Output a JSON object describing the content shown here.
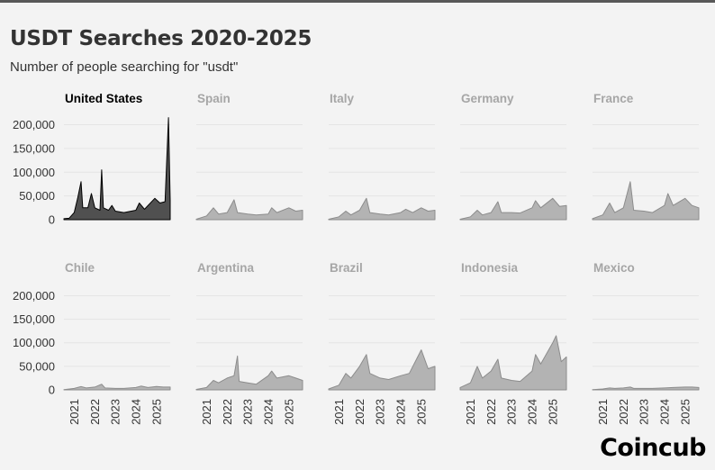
{
  "header": {
    "title": "USDT Searches 2020-2025",
    "subtitle": "Number of people searching for \"usdt\""
  },
  "logo_text": "Coincub",
  "colors": {
    "highlight_fill": "#505050",
    "highlight_line": "#000000",
    "muted_fill": "#b3b3b3",
    "muted_line": "#8c8c8c",
    "highlight_title": "#000000",
    "muted_title": "#a6a6a6",
    "grid": "#e4e4e4",
    "background": "#f3f3f3"
  },
  "chart_data": {
    "type": "area",
    "layout": "small multiples, 2 rows x 5 columns, shared axes",
    "x_ticks": [
      "2021",
      "2022",
      "2023",
      "2024",
      "2025"
    ],
    "y_ticks": [
      "0",
      "50,000",
      "100,000",
      "150,000",
      "200,000"
    ],
    "ylim": [
      0,
      220000
    ],
    "xlim": [
      "2020-07",
      "2025-09"
    ],
    "grid": true,
    "series": [
      {
        "name": "United States",
        "highlight": true,
        "points": [
          [
            "2020-07",
            2000
          ],
          [
            "2020-10",
            3000
          ],
          [
            "2021-01",
            15000
          ],
          [
            "2021-03",
            45000
          ],
          [
            "2021-05",
            80000
          ],
          [
            "2021-06",
            25000
          ],
          [
            "2021-09",
            25000
          ],
          [
            "2021-11",
            55000
          ],
          [
            "2022-01",
            25000
          ],
          [
            "2022-04",
            20000
          ],
          [
            "2022-05",
            105000
          ],
          [
            "2022-06",
            25000
          ],
          [
            "2022-09",
            20000
          ],
          [
            "2022-11",
            30000
          ],
          [
            "2023-01",
            18000
          ],
          [
            "2023-06",
            15000
          ],
          [
            "2024-01",
            20000
          ],
          [
            "2024-03",
            35000
          ],
          [
            "2024-06",
            22000
          ],
          [
            "2024-12",
            45000
          ],
          [
            "2025-03",
            35000
          ],
          [
            "2025-06",
            38000
          ],
          [
            "2025-08",
            215000
          ],
          [
            "2025-09",
            40000
          ]
        ]
      },
      {
        "name": "Spain",
        "highlight": false,
        "points": [
          [
            "2020-07",
            1000
          ],
          [
            "2021-01",
            8000
          ],
          [
            "2021-05",
            25000
          ],
          [
            "2021-08",
            12000
          ],
          [
            "2022-01",
            15000
          ],
          [
            "2022-05",
            42000
          ],
          [
            "2022-07",
            15000
          ],
          [
            "2023-01",
            12000
          ],
          [
            "2023-06",
            10000
          ],
          [
            "2024-01",
            12000
          ],
          [
            "2024-03",
            25000
          ],
          [
            "2024-06",
            15000
          ],
          [
            "2025-01",
            25000
          ],
          [
            "2025-05",
            18000
          ],
          [
            "2025-09",
            20000
          ]
        ]
      },
      {
        "name": "Italy",
        "highlight": false,
        "points": [
          [
            "2020-07",
            1000
          ],
          [
            "2021-01",
            6000
          ],
          [
            "2021-05",
            18000
          ],
          [
            "2021-08",
            10000
          ],
          [
            "2022-01",
            20000
          ],
          [
            "2022-05",
            45000
          ],
          [
            "2022-07",
            15000
          ],
          [
            "2023-01",
            12000
          ],
          [
            "2023-06",
            10000
          ],
          [
            "2024-01",
            15000
          ],
          [
            "2024-04",
            22000
          ],
          [
            "2024-08",
            15000
          ],
          [
            "2025-01",
            25000
          ],
          [
            "2025-05",
            18000
          ],
          [
            "2025-09",
            20000
          ]
        ]
      },
      {
        "name": "Germany",
        "highlight": false,
        "points": [
          [
            "2020-07",
            1000
          ],
          [
            "2021-01",
            6000
          ],
          [
            "2021-05",
            20000
          ],
          [
            "2021-08",
            10000
          ],
          [
            "2022-01",
            15000
          ],
          [
            "2022-05",
            38000
          ],
          [
            "2022-07",
            15000
          ],
          [
            "2023-01",
            15000
          ],
          [
            "2023-06",
            14000
          ],
          [
            "2024-01",
            25000
          ],
          [
            "2024-03",
            40000
          ],
          [
            "2024-06",
            25000
          ],
          [
            "2025-01",
            45000
          ],
          [
            "2025-05",
            28000
          ],
          [
            "2025-09",
            30000
          ]
        ]
      },
      {
        "name": "France",
        "highlight": false,
        "points": [
          [
            "2020-07",
            2000
          ],
          [
            "2021-01",
            10000
          ],
          [
            "2021-05",
            35000
          ],
          [
            "2021-08",
            15000
          ],
          [
            "2022-01",
            25000
          ],
          [
            "2022-05",
            80000
          ],
          [
            "2022-07",
            20000
          ],
          [
            "2023-01",
            18000
          ],
          [
            "2023-06",
            15000
          ],
          [
            "2024-01",
            30000
          ],
          [
            "2024-03",
            55000
          ],
          [
            "2024-06",
            30000
          ],
          [
            "2025-01",
            45000
          ],
          [
            "2025-05",
            30000
          ],
          [
            "2025-09",
            25000
          ]
        ]
      },
      {
        "name": "Chile",
        "highlight": false,
        "points": [
          [
            "2020-07",
            500
          ],
          [
            "2021-01",
            3000
          ],
          [
            "2021-05",
            7000
          ],
          [
            "2021-08",
            4000
          ],
          [
            "2022-01",
            6000
          ],
          [
            "2022-05",
            12000
          ],
          [
            "2022-07",
            4000
          ],
          [
            "2023-01",
            3000
          ],
          [
            "2023-06",
            3000
          ],
          [
            "2024-01",
            5000
          ],
          [
            "2024-04",
            8000
          ],
          [
            "2024-08",
            5000
          ],
          [
            "2025-01",
            7000
          ],
          [
            "2025-05",
            6000
          ],
          [
            "2025-09",
            6000
          ]
        ]
      },
      {
        "name": "Argentina",
        "highlight": false,
        "points": [
          [
            "2020-07",
            1000
          ],
          [
            "2021-01",
            5000
          ],
          [
            "2021-05",
            20000
          ],
          [
            "2021-08",
            15000
          ],
          [
            "2022-01",
            25000
          ],
          [
            "2022-05",
            30000
          ],
          [
            "2022-07",
            72000
          ],
          [
            "2022-08",
            18000
          ],
          [
            "2023-01",
            15000
          ],
          [
            "2023-06",
            12000
          ],
          [
            "2024-01",
            30000
          ],
          [
            "2024-03",
            40000
          ],
          [
            "2024-06",
            25000
          ],
          [
            "2025-01",
            30000
          ],
          [
            "2025-05",
            25000
          ],
          [
            "2025-09",
            20000
          ]
        ]
      },
      {
        "name": "Brazil",
        "highlight": false,
        "points": [
          [
            "2020-07",
            2000
          ],
          [
            "2021-01",
            10000
          ],
          [
            "2021-05",
            35000
          ],
          [
            "2021-08",
            25000
          ],
          [
            "2022-01",
            50000
          ],
          [
            "2022-05",
            75000
          ],
          [
            "2022-07",
            35000
          ],
          [
            "2023-01",
            25000
          ],
          [
            "2023-06",
            22000
          ],
          [
            "2024-01",
            30000
          ],
          [
            "2024-06",
            35000
          ],
          [
            "2025-01",
            85000
          ],
          [
            "2025-05",
            45000
          ],
          [
            "2025-09",
            50000
          ]
        ]
      },
      {
        "name": "Indonesia",
        "highlight": false,
        "points": [
          [
            "2020-07",
            5000
          ],
          [
            "2021-01",
            15000
          ],
          [
            "2021-05",
            50000
          ],
          [
            "2021-08",
            25000
          ],
          [
            "2022-01",
            40000
          ],
          [
            "2022-05",
            65000
          ],
          [
            "2022-07",
            25000
          ],
          [
            "2023-01",
            20000
          ],
          [
            "2023-06",
            18000
          ],
          [
            "2024-01",
            40000
          ],
          [
            "2024-03",
            75000
          ],
          [
            "2024-06",
            55000
          ],
          [
            "2025-01",
            100000
          ],
          [
            "2025-03",
            115000
          ],
          [
            "2025-06",
            60000
          ],
          [
            "2025-09",
            70000
          ]
        ]
      },
      {
        "name": "Mexico",
        "highlight": false,
        "points": [
          [
            "2020-07",
            500
          ],
          [
            "2021-01",
            2000
          ],
          [
            "2021-05",
            4000
          ],
          [
            "2021-08",
            3000
          ],
          [
            "2022-01",
            4000
          ],
          [
            "2022-05",
            6000
          ],
          [
            "2022-07",
            3000
          ],
          [
            "2023-01",
            3000
          ],
          [
            "2023-06",
            3000
          ],
          [
            "2024-01",
            4000
          ],
          [
            "2024-06",
            5000
          ],
          [
            "2025-01",
            6000
          ],
          [
            "2025-05",
            6000
          ],
          [
            "2025-09",
            5000
          ]
        ]
      }
    ]
  }
}
